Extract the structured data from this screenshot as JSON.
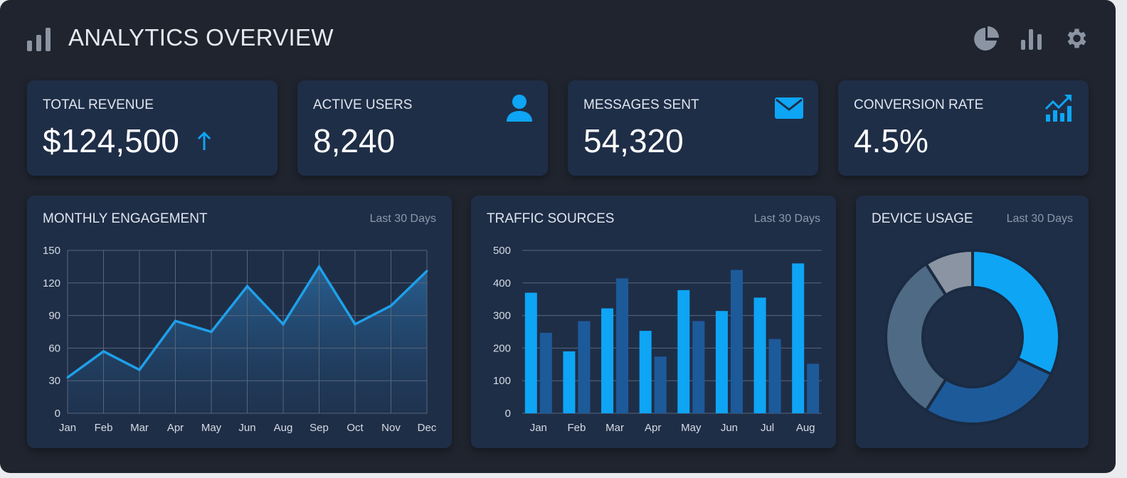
{
  "header": {
    "title": "ANALYTICS OVERVIEW",
    "icons": [
      "bar-chart-icon",
      "pie-chart-icon",
      "bar-chart-icon",
      "gear-icon"
    ]
  },
  "kpis": [
    {
      "label": "TOTAL REVENUE",
      "value": "$124,500",
      "icon": "arrow-up-icon"
    },
    {
      "label": "ACTIVE USERS",
      "value": "8,240",
      "icon": "user-icon"
    },
    {
      "label": "MESSAGES SENT",
      "value": "54,320",
      "icon": "mail-icon"
    },
    {
      "label": "CONVERSION RATE",
      "value": "4.5%",
      "icon": "trending-up-icon"
    }
  ],
  "colors": {
    "accent": "#0ea5f5",
    "dark_blue": "#1d5a9a",
    "slate": "#4f6a84",
    "gray": "#8a94a3",
    "card": "#1f2e47",
    "background": "#1f242e"
  },
  "panels": {
    "engagement": {
      "title": "MONTHLY ENGAGEMENT",
      "period": "Last 30 Days"
    },
    "traffic": {
      "title": "TRAFFIC SOURCES",
      "period": "Last 30 Days"
    },
    "devices": {
      "title": "DEVICE USAGE",
      "period": "Last 30 Days"
    }
  },
  "chart_data": [
    {
      "type": "area",
      "categories": [
        "Jan",
        "Feb",
        "Mar",
        "Apr",
        "May",
        "Jun",
        "Aug",
        "Sep",
        "Oct",
        "Nov",
        "Dec"
      ],
      "values": [
        33,
        57,
        40,
        85,
        75,
        117,
        82,
        135,
        82,
        99,
        131
      ],
      "ylim": [
        0,
        150
      ],
      "yticks": [
        0,
        30,
        60,
        90,
        120,
        150
      ],
      "grid": true
    },
    {
      "type": "bar",
      "categories": [
        "Jan",
        "Feb",
        "Mar",
        "Apr",
        "May",
        "Jun",
        "Jul",
        "Aug"
      ],
      "series": [
        {
          "values": [
            370,
            190,
            322,
            253,
            378,
            314,
            355,
            460
          ],
          "color": "#0ea5f5"
        },
        {
          "values": [
            247,
            283,
            414,
            174,
            283,
            440,
            228,
            152
          ],
          "color": "#1d5a9a"
        }
      ],
      "ylim": [
        0,
        500
      ],
      "yticks": [
        0,
        100,
        200,
        300,
        400,
        500
      ],
      "grid": true
    },
    {
      "type": "pie",
      "donut": true,
      "values": [
        32,
        27,
        32,
        9
      ],
      "colors": [
        "#0ea5f5",
        "#1d5a9a",
        "#4f6a84",
        "#8a94a3"
      ]
    }
  ]
}
